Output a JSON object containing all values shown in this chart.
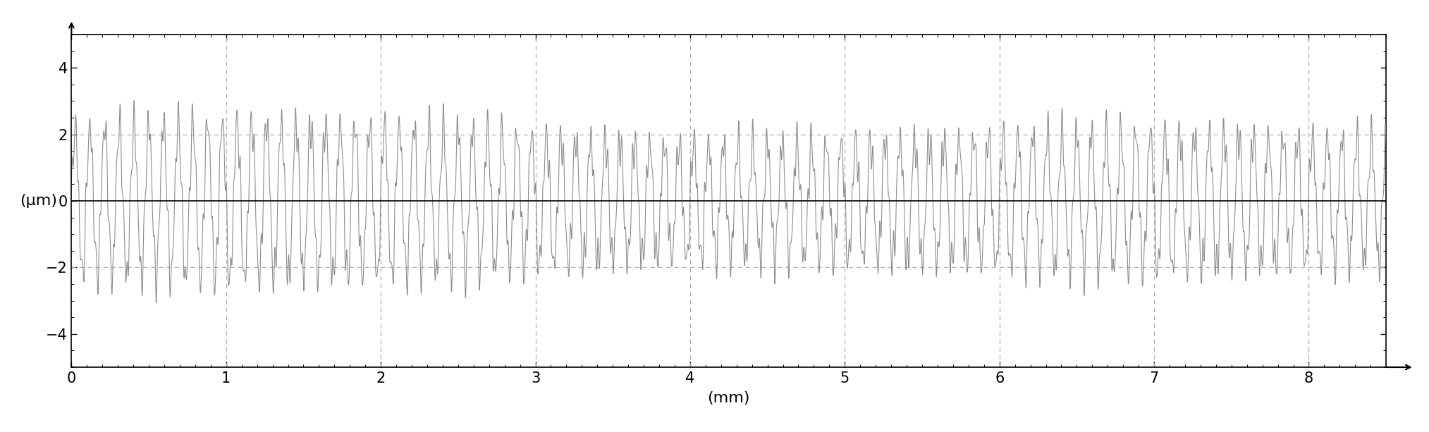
{
  "x_min": 0,
  "x_max": 8.5,
  "y_min": -5,
  "y_max": 5,
  "x_ticks": [
    0,
    1,
    2,
    3,
    4,
    5,
    6,
    7,
    8
  ],
  "y_ticks": [
    -4,
    -2,
    0,
    2,
    4
  ],
  "xlabel": "(mm)",
  "ylabel": "(μm)",
  "signal_amplitude": 2.0,
  "signal_frequency": 10.5,
  "noise_amplitude": 0.45,
  "noise_frequency": 45,
  "bg_color": "#ffffff",
  "line_color": "#888888",
  "zero_line_color": "#000000",
  "grid_color": "#b0b0b0",
  "axis_color": "#000000",
  "tick_color": "#000000",
  "dashed_grid_values": [
    -2.0,
    2.0
  ],
  "figsize": [
    20.27,
    6.13
  ],
  "dpi": 100
}
